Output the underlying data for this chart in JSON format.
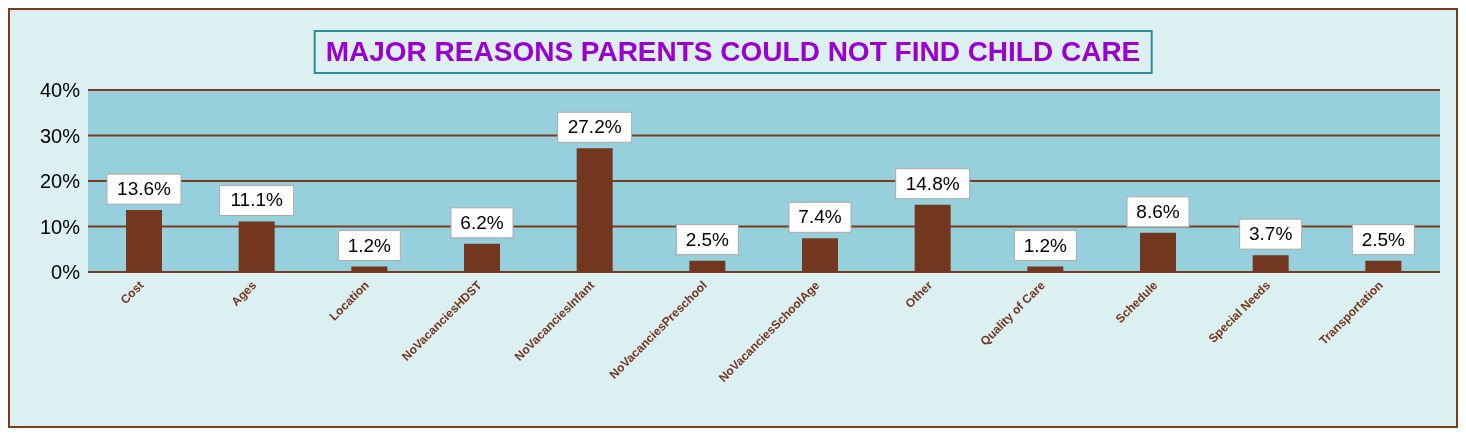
{
  "chart_data": {
    "type": "bar",
    "title": "MAJOR REASONS PARENTS COULD NOT FIND CHILD CARE",
    "categories": [
      "Cost",
      "Ages",
      "Location",
      "NoVacanciesHDST",
      "NoVacanciesInfant",
      "NoVacanciesPreschool",
      "NoVacanciesSchoolAge",
      "Other",
      "Quality of Care",
      "Schedule",
      "Special Needs",
      "Transportation"
    ],
    "values": [
      13.6,
      11.1,
      1.2,
      6.2,
      27.2,
      2.5,
      7.4,
      14.8,
      1.2,
      8.6,
      3.7,
      2.5
    ],
    "value_labels": [
      "13.6%",
      "11.1%",
      "1.2%",
      "6.2%",
      "27.2%",
      "2.5%",
      "7.4%",
      "14.8%",
      "1.2%",
      "8.6%",
      "3.7%",
      "2.5%"
    ],
    "color": "#73371f",
    "ylim": [
      0,
      40
    ],
    "yticks": [
      {
        "value": 0,
        "label": "0%"
      },
      {
        "value": 10,
        "label": "10%"
      },
      {
        "value": 20,
        "label": "20%"
      },
      {
        "value": 30,
        "label": "30%"
      },
      {
        "value": 40,
        "label": "40%"
      }
    ],
    "grid": "y"
  }
}
